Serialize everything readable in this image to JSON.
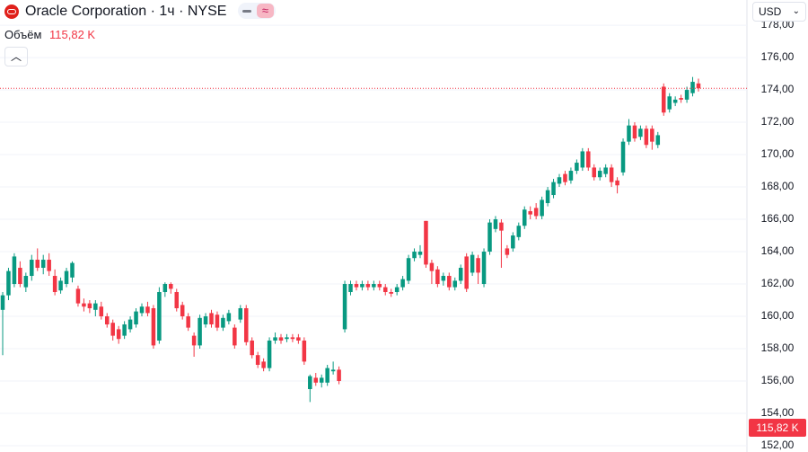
{
  "header": {
    "title": "Oracle Corporation · 1ч · NYSE",
    "volume_label": "Объём",
    "volume_value": "115,82 K",
    "currency": "USD"
  },
  "chart_data": {
    "type": "candlestick",
    "up_color": "#089981",
    "down_color": "#f23645",
    "ylim": [
      151.61,
      179.56
    ],
    "yticks": [
      {
        "value": 152,
        "label": "152,00"
      },
      {
        "value": 154,
        "label": "154,00"
      },
      {
        "value": 156,
        "label": "156,00"
      },
      {
        "value": 158,
        "label": "158,00"
      },
      {
        "value": 160,
        "label": "160,00"
      },
      {
        "value": 162,
        "label": "162,00"
      },
      {
        "value": 164,
        "label": "164,00"
      },
      {
        "value": 166,
        "label": "166,00"
      },
      {
        "value": 168,
        "label": "168,00"
      },
      {
        "value": 170,
        "label": "170,00"
      },
      {
        "value": 172,
        "label": "172,00"
      },
      {
        "value": 174,
        "label": "174,00"
      },
      {
        "value": 176,
        "label": "176,00"
      },
      {
        "value": 178,
        "label": "178,00"
      }
    ],
    "grid": true,
    "candles": [
      [
        160.4,
        161.5,
        157.6,
        161.3
      ],
      [
        161.3,
        163.0,
        161.0,
        162.8
      ],
      [
        162.0,
        163.9,
        161.8,
        163.7
      ],
      [
        163.0,
        163.4,
        161.8,
        162.0
      ],
      [
        161.8,
        162.7,
        161.5,
        162.5
      ],
      [
        162.5,
        163.8,
        162.2,
        163.5
      ],
      [
        163.5,
        164.2,
        162.8,
        163.0
      ],
      [
        163.0,
        163.8,
        162.6,
        163.5
      ],
      [
        163.5,
        163.9,
        162.5,
        162.8
      ],
      [
        162.5,
        162.9,
        161.3,
        161.5
      ],
      [
        161.6,
        162.4,
        161.4,
        162.2
      ],
      [
        162.0,
        163.0,
        161.8,
        162.8
      ],
      [
        162.4,
        163.4,
        162.1,
        163.3
      ],
      [
        161.7,
        161.9,
        160.6,
        160.8
      ],
      [
        160.8,
        161.1,
        160.3,
        160.6
      ],
      [
        160.8,
        161.0,
        160.2,
        160.5
      ],
      [
        160.4,
        161.0,
        160.0,
        160.8
      ],
      [
        160.6,
        160.9,
        159.8,
        160.0
      ],
      [
        160.0,
        160.2,
        159.3,
        159.5
      ],
      [
        159.6,
        159.8,
        158.5,
        158.8
      ],
      [
        159.2,
        159.4,
        158.3,
        158.6
      ],
      [
        158.8,
        159.7,
        158.6,
        159.5
      ],
      [
        159.2,
        160.0,
        159.0,
        159.8
      ],
      [
        159.5,
        160.5,
        159.3,
        160.3
      ],
      [
        160.2,
        160.8,
        160.0,
        160.6
      ],
      [
        160.6,
        160.9,
        160.0,
        160.2
      ],
      [
        160.5,
        160.7,
        158.0,
        158.2
      ],
      [
        158.5,
        161.8,
        158.3,
        161.5
      ],
      [
        161.5,
        162.1,
        161.2,
        162.0
      ],
      [
        162.0,
        162.1,
        161.4,
        161.7
      ],
      [
        161.5,
        161.7,
        160.3,
        160.5
      ],
      [
        160.7,
        160.9,
        159.8,
        160.0
      ],
      [
        160.0,
        160.2,
        159.1,
        159.3
      ],
      [
        158.8,
        159.0,
        157.5,
        158.2
      ],
      [
        158.2,
        160.1,
        158.0,
        159.9
      ],
      [
        159.5,
        160.2,
        159.3,
        160.0
      ],
      [
        160.2,
        160.4,
        159.3,
        159.5
      ],
      [
        160.1,
        160.3,
        159.1,
        159.3
      ],
      [
        159.3,
        160.1,
        159.1,
        159.9
      ],
      [
        159.7,
        160.4,
        159.5,
        160.2
      ],
      [
        159.3,
        159.5,
        158.0,
        158.2
      ],
      [
        159.8,
        160.7,
        159.6,
        160.5
      ],
      [
        160.5,
        160.7,
        158.2,
        158.4
      ],
      [
        158.5,
        158.7,
        157.4,
        157.6
      ],
      [
        157.6,
        157.8,
        156.8,
        157.0
      ],
      [
        157.2,
        157.4,
        156.6,
        156.8
      ],
      [
        156.8,
        158.7,
        156.6,
        158.5
      ],
      [
        158.5,
        159.0,
        158.3,
        158.7
      ],
      [
        158.7,
        158.9,
        158.3,
        158.5
      ],
      [
        158.6,
        158.9,
        158.4,
        158.7
      ],
      [
        158.7,
        158.9,
        158.4,
        158.6
      ],
      [
        158.7,
        158.9,
        158.3,
        158.5
      ],
      [
        158.5,
        158.7,
        157.0,
        157.2
      ],
      [
        155.5,
        156.4,
        154.7,
        156.3
      ],
      [
        156.2,
        156.5,
        155.7,
        155.9
      ],
      [
        155.9,
        156.4,
        155.6,
        156.2
      ],
      [
        155.9,
        157.0,
        155.7,
        156.8
      ],
      [
        156.6,
        157.2,
        156.4,
        156.7
      ],
      [
        156.7,
        156.9,
        155.8,
        156.0
      ],
      [
        159.2,
        162.2,
        159.0,
        162.0
      ],
      [
        161.5,
        162.2,
        161.3,
        162.0
      ],
      [
        162.0,
        162.2,
        161.6,
        161.8
      ],
      [
        161.8,
        162.2,
        161.6,
        162.0
      ],
      [
        162.0,
        162.2,
        161.6,
        161.8
      ],
      [
        161.8,
        162.2,
        161.6,
        162.0
      ],
      [
        162.0,
        162.2,
        161.6,
        161.8
      ],
      [
        161.8,
        162.0,
        161.3,
        161.5
      ],
      [
        161.5,
        161.7,
        161.2,
        161.4
      ],
      [
        161.5,
        162.0,
        161.3,
        161.8
      ],
      [
        161.8,
        162.5,
        161.6,
        162.3
      ],
      [
        162.2,
        163.8,
        162.0,
        163.6
      ],
      [
        163.6,
        164.2,
        163.4,
        164.0
      ],
      [
        163.8,
        164.4,
        163.6,
        164.0
      ],
      [
        165.9,
        165.9,
        163.0,
        163.2
      ],
      [
        163.3,
        163.5,
        162.0,
        162.8
      ],
      [
        162.9,
        163.1,
        161.8,
        162.0
      ],
      [
        162.2,
        162.7,
        161.9,
        162.5
      ],
      [
        162.5,
        162.7,
        161.6,
        161.8
      ],
      [
        161.8,
        162.4,
        161.6,
        162.2
      ],
      [
        162.2,
        163.2,
        162.0,
        163.0
      ],
      [
        163.7,
        163.9,
        161.5,
        161.7
      ],
      [
        162.7,
        164.0,
        162.5,
        163.8
      ],
      [
        163.6,
        163.8,
        162.0,
        162.7
      ],
      [
        162.0,
        164.2,
        161.8,
        164.0
      ],
      [
        164.0,
        166.0,
        163.8,
        165.8
      ],
      [
        165.4,
        166.2,
        165.2,
        166.0
      ],
      [
        165.8,
        166.0,
        163.0,
        165.3
      ],
      [
        164.2,
        164.4,
        163.6,
        163.8
      ],
      [
        164.2,
        165.2,
        164.0,
        165.0
      ],
      [
        164.9,
        165.8,
        164.7,
        165.6
      ],
      [
        165.6,
        166.8,
        165.4,
        166.6
      ],
      [
        166.5,
        166.8,
        166.0,
        166.3
      ],
      [
        166.7,
        167.0,
        166.0,
        166.2
      ],
      [
        166.2,
        167.4,
        166.0,
        167.2
      ],
      [
        167.0,
        168.0,
        166.8,
        167.8
      ],
      [
        167.5,
        168.5,
        167.3,
        168.3
      ],
      [
        168.2,
        168.8,
        168.0,
        168.6
      ],
      [
        168.8,
        169.0,
        168.1,
        168.3
      ],
      [
        168.4,
        169.2,
        168.2,
        169.0
      ],
      [
        169.0,
        169.7,
        168.8,
        169.5
      ],
      [
        169.2,
        170.4,
        169.0,
        170.2
      ],
      [
        170.2,
        170.4,
        169.0,
        169.2
      ],
      [
        169.2,
        169.4,
        168.4,
        168.6
      ],
      [
        168.6,
        169.2,
        168.4,
        169.0
      ],
      [
        168.8,
        169.4,
        168.6,
        169.2
      ],
      [
        169.2,
        169.4,
        168.0,
        168.3
      ],
      [
        168.4,
        168.6,
        167.6,
        168.1
      ],
      [
        168.9,
        171.0,
        168.7,
        170.8
      ],
      [
        170.8,
        172.2,
        170.6,
        171.8
      ],
      [
        171.8,
        172.0,
        170.8,
        171.0
      ],
      [
        171.1,
        171.8,
        170.9,
        171.6
      ],
      [
        171.6,
        171.8,
        170.4,
        170.6
      ],
      [
        171.6,
        171.8,
        170.3,
        170.8
      ],
      [
        170.6,
        171.4,
        170.4,
        171.2
      ],
      [
        174.2,
        174.4,
        172.4,
        172.6
      ],
      [
        172.8,
        173.8,
        172.6,
        173.6
      ],
      [
        173.2,
        173.6,
        173.0,
        173.4
      ],
      [
        173.5,
        173.7,
        173.2,
        173.4
      ],
      [
        173.4,
        174.2,
        173.2,
        174.0
      ],
      [
        173.8,
        174.8,
        173.6,
        174.5
      ],
      [
        174.4,
        174.7,
        173.9,
        174.1
      ]
    ]
  }
}
